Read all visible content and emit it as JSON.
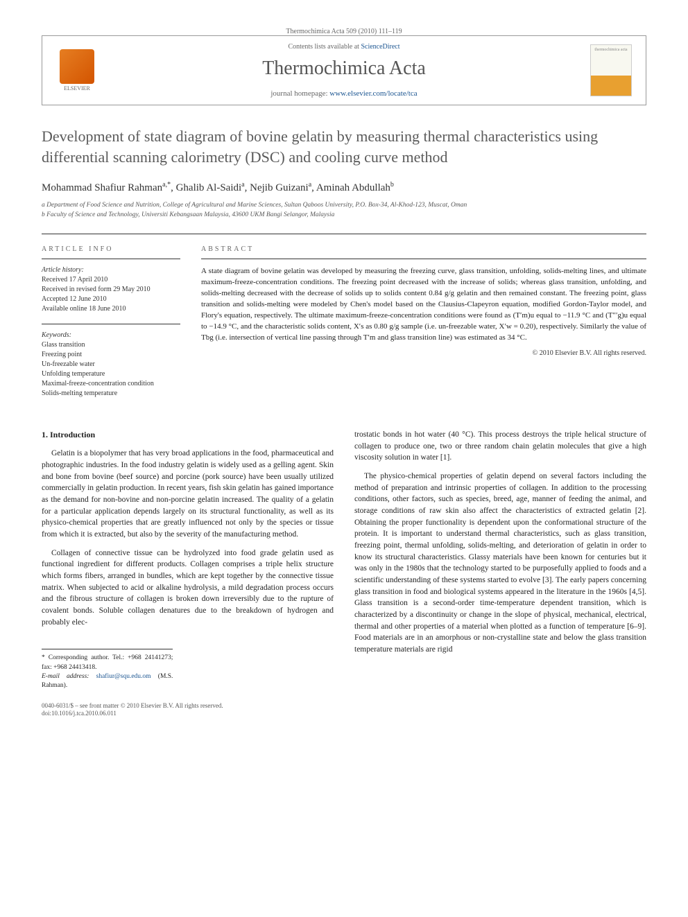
{
  "header": {
    "journal_ref": "Thermochimica Acta 509 (2010) 111–119",
    "contents_line_prefix": "Contents lists available at ",
    "contents_line_link": "ScienceDirect",
    "journal_name": "Thermochimica Acta",
    "homepage_prefix": "journal homepage: ",
    "homepage_url": "www.elsevier.com/locate/tca",
    "elsevier_label": "ELSEVIER",
    "cover_label": "thermochimica acta"
  },
  "article": {
    "title": "Development of state diagram of bovine gelatin by measuring thermal characteristics using differential scanning calorimetry (DSC) and cooling curve method",
    "authors_html": "Mohammad Shafiur Rahman",
    "author1": "Mohammad Shafiur Rahman",
    "author1_sup": "a,*",
    "author2": "Ghalib Al-Saidi",
    "author2_sup": "a",
    "author3": "Nejib Guizani",
    "author3_sup": "a",
    "author4": "Aminah Abdullah",
    "author4_sup": "b",
    "affil_a": "a Department of Food Science and Nutrition, College of Agricultural and Marine Sciences, Sultan Qaboos University, P.O. Box-34, Al-Khod-123, Muscat, Oman",
    "affil_b": "b Faculty of Science and Technology, Universiti Kebangsaan Malaysia, 43600 UKM Bangi Selangor, Malaysia"
  },
  "info": {
    "heading": "ARTICLE INFO",
    "history_label": "Article history:",
    "received": "Received 17 April 2010",
    "revised": "Received in revised form 29 May 2010",
    "accepted": "Accepted 12 June 2010",
    "online": "Available online 18 June 2010",
    "keywords_label": "Keywords:",
    "kw1": "Glass transition",
    "kw2": "Freezing point",
    "kw3": "Un-freezable water",
    "kw4": "Unfolding temperature",
    "kw5": "Maximal-freeze-concentration condition",
    "kw6": "Solids-melting temperature"
  },
  "abstract": {
    "heading": "ABSTRACT",
    "text": "A state diagram of bovine gelatin was developed by measuring the freezing curve, glass transition, unfolding, solids-melting lines, and ultimate maximum-freeze-concentration conditions. The freezing point decreased with the increase of solids; whereas glass transition, unfolding, and solids-melting decreased with the decrease of solids up to solids content 0.84 g/g gelatin and then remained constant. The freezing point, glass transition and solids-melting were modeled by Chen's model based on the Clausius-Clapeyron equation, modified Gordon-Taylor model, and Flory's equation, respectively. The ultimate maximum-freeze-concentration conditions were found as (T′m)u equal to −11.9 °C and (T″′g)u equal to −14.9 °C, and the characteristic solids content, X′s as 0.80 g/g sample (i.e. un-freezable water, X′w = 0.20), respectively. Similarly the value of Tbg (i.e. intersection of vertical line passing through T′m and glass transition line) was estimated as 34 °C.",
    "copyright": "© 2010 Elsevier B.V. All rights reserved."
  },
  "body": {
    "section_heading": "1. Introduction",
    "p1": "Gelatin is a biopolymer that has very broad applications in the food, pharmaceutical and photographic industries. In the food industry gelatin is widely used as a gelling agent. Skin and bone from bovine (beef source) and porcine (pork source) have been usually utilized commercially in gelatin production. In recent years, fish skin gelatin has gained importance as the demand for non-bovine and non-porcine gelatin increased. The quality of a gelatin for a particular application depends largely on its structural functionality, as well as its physico-chemical properties that are greatly influenced not only by the species or tissue from which it is extracted, but also by the severity of the manufacturing method.",
    "p2": "Collagen of connective tissue can be hydrolyzed into food grade gelatin used as functional ingredient for different products. Collagen comprises a triple helix structure which forms fibers, arranged in bundles, which are kept together by the connective tissue matrix. When subjected to acid or alkaline hydrolysis, a mild degradation process occurs and the fibrous structure of collagen is broken down irreversibly due to the rupture of covalent bonds. Soluble collagen denatures due to the breakdown of hydrogen and probably elec-",
    "p3": "trostatic bonds in hot water (40 °C). This process destroys the triple helical structure of collagen to produce one, two or three random chain gelatin molecules that give a high viscosity solution in water [1].",
    "p4": "The physico-chemical properties of gelatin depend on several factors including the method of preparation and intrinsic properties of collagen. In addition to the processing conditions, other factors, such as species, breed, age, manner of feeding the animal, and storage conditions of raw skin also affect the characteristics of extracted gelatin [2]. Obtaining the proper functionality is dependent upon the conformational structure of the protein. It is important to understand thermal characteristics, such as glass transition, freezing point, thermal unfolding, solids-melting, and deterioration of gelatin in order to know its structural characteristics. Glassy materials have been known for centuries but it was only in the 1980s that the technology started to be purposefully applied to foods and a scientific understanding of these systems started to evolve [3]. The early papers concerning glass transition in food and biological systems appeared in the literature in the 1960s [4,5]. Glass transition is a second-order time-temperature dependent transition, which is characterized by a discontinuity or change in the slope of physical, mechanical, electrical, thermal and other properties of a material when plotted as a function of temperature [6–9]. Food materials are in an amorphous or non-crystalline state and below the glass transition temperature materials are rigid"
  },
  "corresponding": {
    "line1": "* Corresponding author. Tel.: +968 24141273; fax: +968 24413418.",
    "line2_label": "E-mail address: ",
    "line2_email": "shafiur@squ.edu.om",
    "line2_suffix": " (M.S. Rahman)."
  },
  "footer": {
    "line1": "0040-6031/$ – see front matter © 2010 Elsevier B.V. All rights reserved.",
    "line2": "doi:10.1016/j.tca.2010.06.011"
  }
}
